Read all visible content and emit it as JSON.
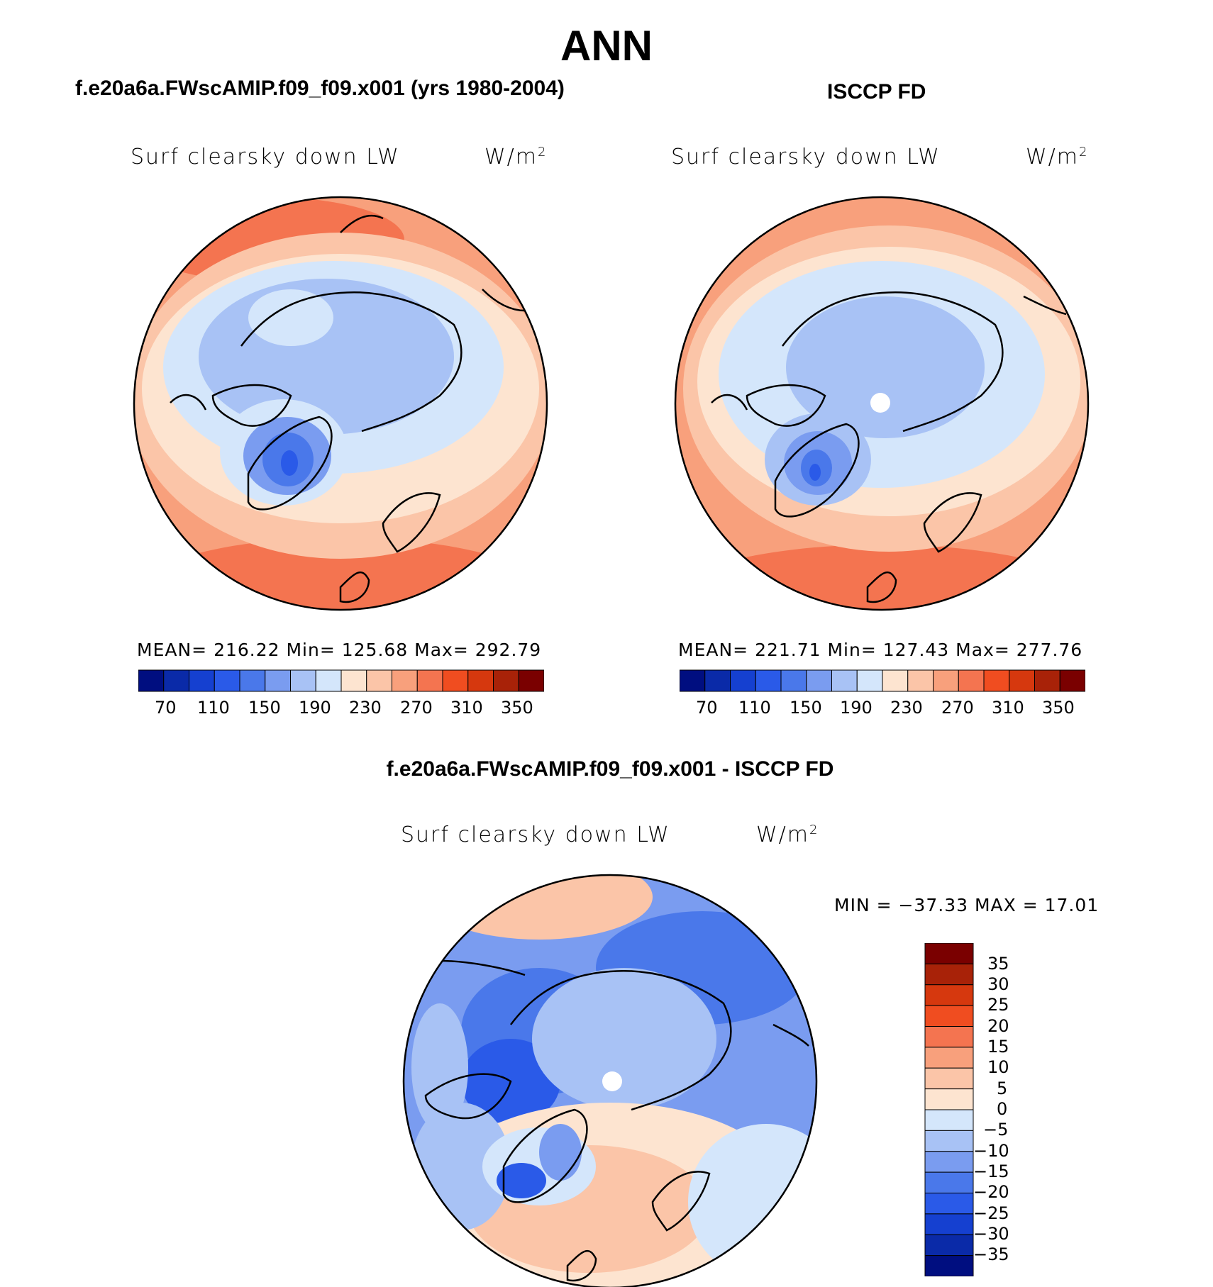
{
  "title": "ANN",
  "panels": [
    {
      "case_title": "f.e20a6a.FWscAMIP.f09_f09.x001 (yrs 1980-2004)",
      "variable": "Surf clearsky down LW",
      "units": "W/m",
      "units_exp": "2",
      "stats": "MEAN= 216.22   Min= 125.68   Max= 292.79",
      "colorbar_labels": [
        "70",
        "110",
        "150",
        "190",
        "230",
        "270",
        "310",
        "350"
      ]
    },
    {
      "case_title": "ISCCP FD",
      "variable": "Surf clearsky down LW",
      "units": "W/m",
      "units_exp": "2",
      "stats": "MEAN= 221.71   Min= 127.43   Max= 277.76",
      "colorbar_labels": [
        "70",
        "110",
        "150",
        "190",
        "230",
        "270",
        "310",
        "350"
      ]
    }
  ],
  "difference": {
    "title": "f.e20a6a.FWscAMIP.f09_f09.x001 - ISCCP FD",
    "variable": "Surf clearsky down LW",
    "units": "W/m",
    "units_exp": "2",
    "stats": "MIN = −37.33 MAX =   17.01",
    "colorbar_labels": [
      "35",
      "30",
      "25",
      "20",
      "15",
      "10",
      "5",
      "0",
      "−5",
      "−10",
      "−15",
      "−20",
      "−25",
      "−30",
      "−35"
    ]
  },
  "colors": {
    "absolute_scale": [
      "#000e80",
      "#0a2aa8",
      "#1540d0",
      "#2a5ae8",
      "#4a78ea",
      "#7a9cf0",
      "#a8c2f5",
      "#d4e6fb",
      "#fde4d0",
      "#fbc5a8",
      "#f8a07c",
      "#f47450",
      "#f04d20",
      "#d6380e",
      "#a82208",
      "#7a0000"
    ],
    "difference_scale": [
      "#7a0000",
      "#a82208",
      "#d6380e",
      "#f04d20",
      "#f47450",
      "#f8a07c",
      "#fbc5a8",
      "#fde4d0",
      "#d4e6fb",
      "#a8c2f5",
      "#7a9cf0",
      "#4a78ea",
      "#2a5ae8",
      "#1540d0",
      "#0a2aa8",
      "#000e80"
    ]
  }
}
